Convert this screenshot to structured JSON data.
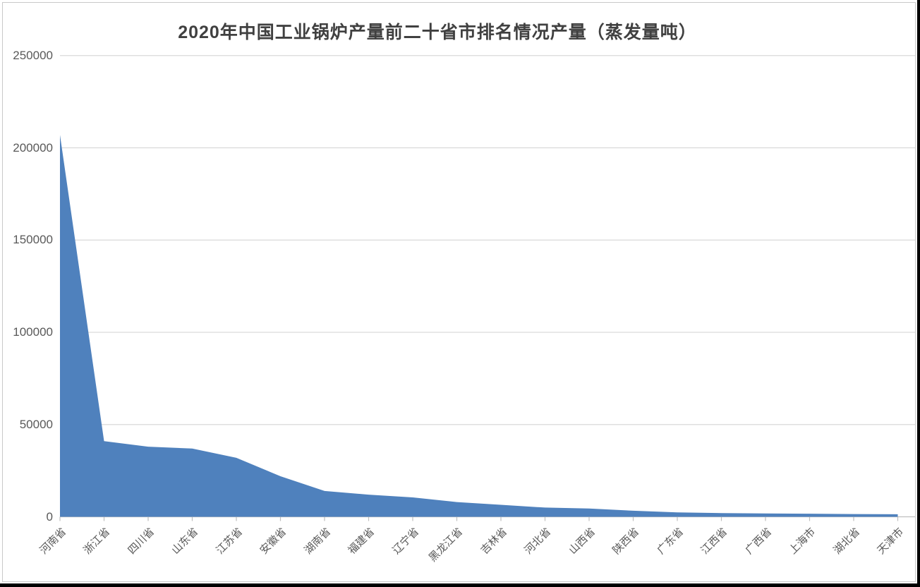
{
  "page": {
    "background_color": "#000000",
    "canvas_color": "#ffffff",
    "frame_border_color": "#c9c9c9"
  },
  "chart_data": {
    "type": "area",
    "title": "2020年中国工业锅炉产量前二十省市排名情况产量（蒸发量吨）",
    "categories": [
      "河南省",
      "浙江省",
      "四川省",
      "山东省",
      "江苏省",
      "安徽省",
      "湖南省",
      "福建省",
      "辽宁省",
      "黑龙江省",
      "吉林省",
      "河北省",
      "山西省",
      "陕西省",
      "广东省",
      "江西省",
      "广西省",
      "上海市",
      "湖北省",
      "天津市"
    ],
    "values": [
      207000,
      41000,
      38000,
      37000,
      32000,
      22000,
      14000,
      12000,
      10500,
      8000,
      6500,
      5000,
      4500,
      3300,
      2400,
      2000,
      1800,
      1650,
      1500,
      1400
    ],
    "xlabel": "",
    "ylabel": "",
    "ylim": [
      0,
      250000
    ],
    "y_ticks": [
      0,
      50000,
      100000,
      150000,
      200000,
      250000
    ],
    "y_tick_labels": [
      "0",
      "50000",
      "100000",
      "150000",
      "200000",
      "250000"
    ],
    "grid": true,
    "legend": "none",
    "x_label_rotation_deg": 45,
    "area_color": "#4f81bd",
    "gridline_color": "#d9d9d9",
    "axis_line_color": "#bfbfbf",
    "tick_color": "#bfbfbf",
    "axis_text_color": "#595959",
    "title_color": "#404040"
  }
}
